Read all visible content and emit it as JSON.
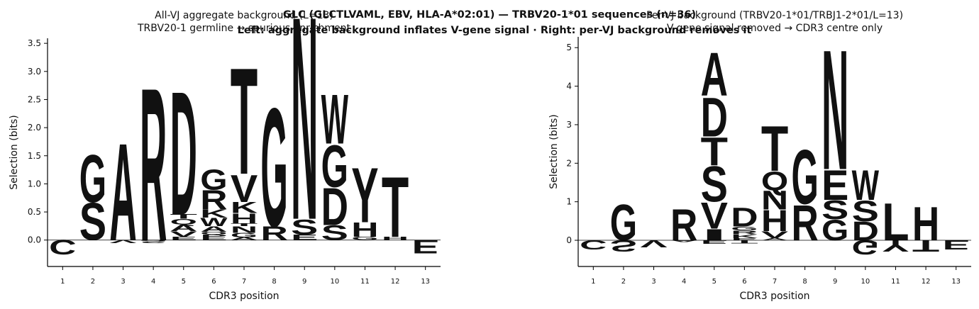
{
  "title": "GLC (GLCTLVAML, EBV, HLA-A*02:01) — TRBV20-1*01 sequences (n=36)",
  "subtitle": "Left: aggregate background inflates V-gene signal  ·  Right: per-VJ background removes it",
  "chart_data": [
    {
      "type": "logo",
      "title": "All-VJ aggregate background (L=13)",
      "subtitle": "TRBV20-1 germline → spurious enrichment",
      "xlabel": "CDR3 position",
      "ylabel": "Selection (bits)",
      "categories": [
        1,
        2,
        3,
        4,
        5,
        6,
        7,
        8,
        9,
        10,
        11,
        12,
        13
      ],
      "xlim": [
        0.5,
        13.5
      ],
      "ylim": [
        -0.47,
        3.59
      ],
      "yticks": [
        {
          "value": 0,
          "label": "0.0"
        },
        {
          "value": 0.5,
          "label": "0.5"
        },
        {
          "value": 1,
          "label": "1.0"
        },
        {
          "value": 1.5,
          "label": "1.5"
        },
        {
          "value": 2,
          "label": "2.0"
        },
        {
          "value": 2.5,
          "label": "2.5"
        },
        {
          "value": 3,
          "label": "3.0"
        },
        {
          "value": 3.5,
          "label": "3.5"
        }
      ],
      "letter_colors": {
        "G": "#3aaa5c",
        "A": "#3aaa5c",
        "V": "#3aaa5c",
        "L": "#3aaa5c",
        "I": "#3aaa5c",
        "S": "#d4a520",
        "T": "#d4a520",
        "N": "#d4a520",
        "Q": "#d4a520",
        "C": "#d4a520",
        "P": "#d4a520",
        "R": "#c0392b",
        "K": "#c0392b",
        "D": "#2c5ea8",
        "E": "#2c5ea8",
        "H": "#7b3f9e",
        "W": "#7b3f9e",
        "Y": "#7b3f9e"
      },
      "stacks": [
        {
          "letters": [
            "C"
          ],
          "values": [
            -0.27
          ]
        },
        {
          "letters": [
            "S",
            "G"
          ],
          "values": [
            0.68,
            0.87
          ]
        },
        {
          "letters": [
            "A",
            "V"
          ],
          "values": [
            1.78,
            -0.06
          ]
        },
        {
          "letters": [
            "R",
            "S"
          ],
          "values": [
            2.8,
            -0.06
          ]
        },
        {
          "letters": [
            "E",
            "V",
            "A",
            "Q",
            "T",
            "D"
          ],
          "values": [
            0.06,
            0.1,
            0.12,
            0.1,
            0.08,
            2.26
          ]
        },
        {
          "letters": [
            "E",
            "P",
            "Q",
            "A",
            "W",
            "K",
            "R",
            "G"
          ],
          "values": [
            0.05,
            0.05,
            0.05,
            0.1,
            0.15,
            0.15,
            0.35,
            0.37
          ]
        },
        {
          "letters": [
            "A",
            "G",
            "N",
            "T",
            "H",
            "K",
            "V",
            "T"
          ],
          "values": [
            0.05,
            0.08,
            0.12,
            0.05,
            0.18,
            0.2,
            0.5,
            1.95
          ]
        },
        {
          "letters": [
            "R",
            "G"
          ],
          "values": [
            0.25,
            2.17
          ]
        },
        {
          "letters": [
            "E",
            "S",
            "N"
          ],
          "values": [
            0.1,
            0.28,
            3.72
          ]
        },
        {
          "letters": [
            "S",
            "D",
            "G",
            "W"
          ],
          "values": [
            0.27,
            0.68,
            0.77,
            0.9
          ]
        },
        {
          "letters": [
            "G",
            "H",
            "Y"
          ],
          "values": [
            0.06,
            0.26,
            1.0
          ]
        },
        {
          "letters": [
            "H",
            "T"
          ],
          "values": [
            0.06,
            1.1
          ]
        },
        {
          "letters": [
            "E"
          ],
          "values": [
            -0.25
          ]
        }
      ]
    },
    {
      "type": "logo",
      "title": "Per-VJ background (TRBV20-1*01/TRBJ1-2*01/L=13)",
      "subtitle": "V-gene signal removed → CDR3 centre only",
      "xlabel": "CDR3 position",
      "ylabel": "Selection (bits)",
      "categories": [
        1,
        2,
        3,
        4,
        5,
        6,
        7,
        8,
        9,
        10,
        11,
        12,
        13
      ],
      "xlim": [
        0.5,
        13.5
      ],
      "ylim": [
        -0.68,
        5.28
      ],
      "yticks": [
        0,
        1,
        2,
        3,
        4,
        5
      ],
      "letter_colors": {
        "G": "#3aaa5c",
        "A": "#3aaa5c",
        "V": "#3aaa5c",
        "L": "#3aaa5c",
        "I": "#3aaa5c",
        "S": "#d4a520",
        "T": "#d4a520",
        "N": "#d4a520",
        "Q": "#d4a520",
        "C": "#d4a520",
        "P": "#d4a520",
        "R": "#c0392b",
        "K": "#c0392b",
        "D": "#2c5ea8",
        "E": "#2c5ea8",
        "H": "#7b3f9e",
        "W": "#7b3f9e",
        "Y": "#7b3f9e"
      },
      "stacks": [
        {
          "letters": [
            "C"
          ],
          "values": [
            -0.25
          ]
        },
        {
          "letters": [
            "G",
            "S"
          ],
          "values": [
            0.96,
            -0.3
          ]
        },
        {
          "letters": [
            "V"
          ],
          "values": [
            -0.2
          ]
        },
        {
          "letters": [
            "R",
            "A"
          ],
          "values": [
            0.83,
            -0.05
          ]
        },
        {
          "letters": [
            "I",
            "V",
            "S",
            "T",
            "D",
            "A",
            "E"
          ],
          "values": [
            0.3,
            0.7,
            0.95,
            0.75,
            1.05,
            1.15,
            -0.1
          ]
        },
        {
          "letters": [
            "E",
            "K",
            "R",
            "G",
            "D",
            "T"
          ],
          "values": [
            0.06,
            0.1,
            0.1,
            0.1,
            0.5,
            -0.08
          ]
        },
        {
          "letters": [
            "A",
            "V",
            "H",
            "N",
            "Q",
            "T"
          ],
          "values": [
            0.06,
            0.18,
            0.56,
            0.5,
            0.5,
            1.2
          ]
        },
        {
          "letters": [
            "R",
            "G"
          ],
          "values": [
            0.95,
            1.45
          ]
        },
        {
          "letters": [
            "G",
            "S",
            "E",
            "N"
          ],
          "values": [
            0.55,
            0.5,
            0.8,
            3.2
          ]
        },
        {
          "letters": [
            "D",
            "S",
            "W",
            "G"
          ],
          "values": [
            0.5,
            0.55,
            0.8,
            -0.38
          ]
        },
        {
          "letters": [
            "L",
            "Y"
          ],
          "values": [
            1.0,
            -0.3
          ]
        },
        {
          "letters": [
            "H",
            "T"
          ],
          "values": [
            0.9,
            -0.3
          ]
        },
        {
          "letters": [
            "E"
          ],
          "values": [
            -0.25
          ]
        }
      ]
    }
  ]
}
